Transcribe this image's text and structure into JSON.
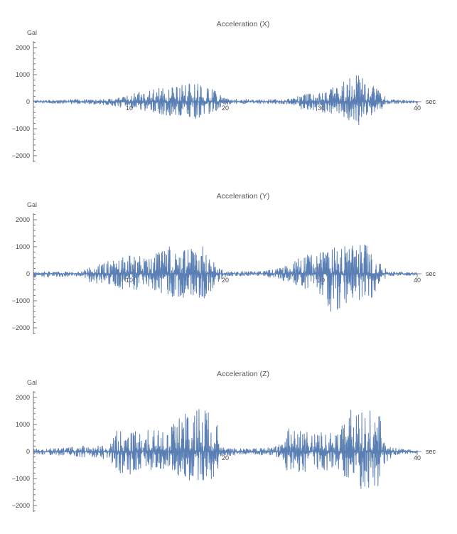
{
  "chart_data": [
    {
      "type": "line",
      "title": "Acceleration (X)",
      "ylabel": "Gal",
      "xlabel": "sec",
      "xlim": [
        0,
        40
      ],
      "ylim": [
        -2200,
        2200
      ],
      "xticks": [
        "10",
        "20",
        "30",
        "40"
      ],
      "yticks": [
        "2000",
        "1000",
        "0",
        "−1000",
        "−2000"
      ],
      "series": [
        {
          "color": "#5a7fb4",
          "envelope": [
            {
              "x": 0,
              "min": -50,
              "max": 50
            },
            {
              "x": 5,
              "min": -80,
              "max": 80
            },
            {
              "x": 8,
              "min": -120,
              "max": 100
            },
            {
              "x": 9,
              "min": -200,
              "max": 150
            },
            {
              "x": 11,
              "min": -300,
              "max": 350
            },
            {
              "x": 13,
              "min": -450,
              "max": 500
            },
            {
              "x": 15,
              "min": -600,
              "max": 650
            },
            {
              "x": 17,
              "min": -650,
              "max": 700
            },
            {
              "x": 19,
              "min": -350,
              "max": 400
            },
            {
              "x": 20,
              "min": -100,
              "max": 120
            },
            {
              "x": 24,
              "min": -70,
              "max": 80
            },
            {
              "x": 27,
              "min": -100,
              "max": 100
            },
            {
              "x": 28,
              "min": -300,
              "max": 280
            },
            {
              "x": 30,
              "min": -400,
              "max": 350
            },
            {
              "x": 32,
              "min": -500,
              "max": 650
            },
            {
              "x": 34,
              "min": -950,
              "max": 1100
            },
            {
              "x": 35,
              "min": -550,
              "max": 700
            },
            {
              "x": 36,
              "min": -350,
              "max": 400
            },
            {
              "x": 37,
              "min": -80,
              "max": 80
            },
            {
              "x": 40,
              "min": -50,
              "max": 50
            }
          ]
        }
      ]
    },
    {
      "type": "line",
      "title": "Acceleration (Y)",
      "ylabel": "Gal",
      "xlabel": "sec",
      "xlim": [
        0,
        40
      ],
      "ylim": [
        -2200,
        2200
      ],
      "xticks": [
        "10",
        "20",
        "30",
        "40"
      ],
      "yticks": [
        "2000",
        "1000",
        "0",
        "−1000",
        "−2000"
      ],
      "series": [
        {
          "color": "#5a7fb4",
          "envelope": [
            {
              "x": 0,
              "min": -150,
              "max": 80
            },
            {
              "x": 5,
              "min": -80,
              "max": 80
            },
            {
              "x": 6,
              "min": -350,
              "max": 300
            },
            {
              "x": 8,
              "min": -400,
              "max": 500
            },
            {
              "x": 10,
              "min": -700,
              "max": 700
            },
            {
              "x": 12,
              "min": -500,
              "max": 600
            },
            {
              "x": 14,
              "min": -900,
              "max": 1000
            },
            {
              "x": 15,
              "min": -1000,
              "max": 1100
            },
            {
              "x": 17,
              "min": -800,
              "max": 900
            },
            {
              "x": 18,
              "min": -1100,
              "max": 1100
            },
            {
              "x": 19,
              "min": -400,
              "max": 300
            },
            {
              "x": 20,
              "min": -80,
              "max": 80
            },
            {
              "x": 24,
              "min": -80,
              "max": 100
            },
            {
              "x": 26,
              "min": -250,
              "max": 250
            },
            {
              "x": 28,
              "min": -500,
              "max": 700
            },
            {
              "x": 30,
              "min": -800,
              "max": 800
            },
            {
              "x": 31,
              "min": -1500,
              "max": 1000
            },
            {
              "x": 33,
              "min": -1000,
              "max": 1100
            },
            {
              "x": 35,
              "min": -1200,
              "max": 1100
            },
            {
              "x": 36,
              "min": -400,
              "max": 500
            },
            {
              "x": 37,
              "min": -80,
              "max": 80
            },
            {
              "x": 40,
              "min": -50,
              "max": 50
            }
          ]
        }
      ]
    },
    {
      "type": "line",
      "title": "Acceleration (Z)",
      "ylabel": "Gal",
      "xlabel": "sec",
      "xlim": [
        0,
        40
      ],
      "ylim": [
        -2200,
        2200
      ],
      "xticks": [
        "20",
        "40"
      ],
      "yticks": [
        "2000",
        "1000",
        "0",
        "−1000",
        "−2000"
      ],
      "series": [
        {
          "color": "#5a7fb4",
          "envelope": [
            {
              "x": 0,
              "min": -100,
              "max": 100
            },
            {
              "x": 3,
              "min": -150,
              "max": 120
            },
            {
              "x": 5,
              "min": -200,
              "max": 200
            },
            {
              "x": 8,
              "min": -300,
              "max": 250
            },
            {
              "x": 8.5,
              "min": -800,
              "max": 800
            },
            {
              "x": 10,
              "min": -850,
              "max": 900
            },
            {
              "x": 12,
              "min": -700,
              "max": 800
            },
            {
              "x": 14,
              "min": -700,
              "max": 750
            },
            {
              "x": 15,
              "min": -1000,
              "max": 1200
            },
            {
              "x": 16,
              "min": -1100,
              "max": 1500
            },
            {
              "x": 18,
              "min": -1100,
              "max": 1600
            },
            {
              "x": 19,
              "min": -1000,
              "max": 1300
            },
            {
              "x": 19.5,
              "min": -200,
              "max": 150
            },
            {
              "x": 22,
              "min": -100,
              "max": 100
            },
            {
              "x": 25,
              "min": -150,
              "max": 150
            },
            {
              "x": 26,
              "min": -300,
              "max": 350
            },
            {
              "x": 26.5,
              "min": -800,
              "max": 900
            },
            {
              "x": 30,
              "min": -700,
              "max": 750
            },
            {
              "x": 32,
              "min": -700,
              "max": 700
            },
            {
              "x": 32.5,
              "min": -1200,
              "max": 1600
            },
            {
              "x": 34,
              "min": -1400,
              "max": 1650
            },
            {
              "x": 36,
              "min": -1300,
              "max": 1700
            },
            {
              "x": 36.5,
              "min": -500,
              "max": 350
            },
            {
              "x": 38,
              "min": -100,
              "max": 100
            },
            {
              "x": 40,
              "min": -50,
              "max": 50
            }
          ]
        }
      ]
    }
  ]
}
